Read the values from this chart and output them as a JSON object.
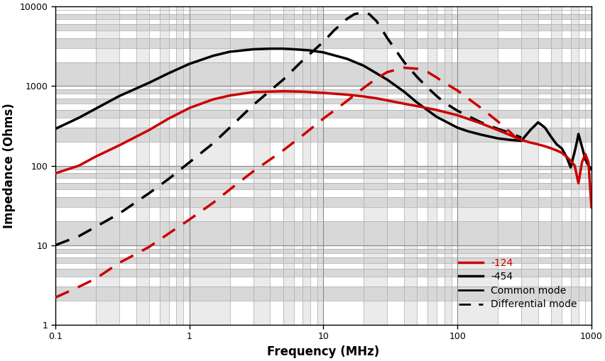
{
  "xlabel": "Frequency (MHz)",
  "ylabel": "Impedance (Ohms)",
  "xlim": [
    0.1,
    1000
  ],
  "ylim": [
    1,
    10000
  ],
  "legend": [
    {
      "label": "-124",
      "color": "#cc0000",
      "linestyle": "solid",
      "linewidth": 2.5
    },
    {
      "label": "-454",
      "color": "black",
      "linestyle": "solid",
      "linewidth": 2.5
    },
    {
      "label": "Common mode",
      "color": "black",
      "linestyle": "solid",
      "linewidth": 2.0
    },
    {
      "label": "Differential mode",
      "color": "black",
      "linestyle": "dashed",
      "linewidth": 2.0
    }
  ],
  "curves": {
    "red_common": {
      "color": "#cc0000",
      "linestyle": "solid",
      "linewidth": 2.5,
      "x": [
        0.1,
        0.15,
        0.2,
        0.3,
        0.5,
        0.7,
        1.0,
        1.5,
        2.0,
        3.0,
        5.0,
        7.0,
        10.0,
        15.0,
        20.0,
        25.0,
        30.0,
        40.0,
        50.0,
        70.0,
        100.0,
        150.0,
        200.0,
        250.0,
        300.0,
        350.0,
        400.0,
        450.0,
        500.0,
        550.0,
        600.0,
        650.0,
        700.0,
        750.0,
        800.0,
        850.0,
        900.0,
        950.0,
        1000.0
      ],
      "y": [
        80,
        100,
        130,
        180,
        280,
        390,
        530,
        680,
        760,
        840,
        860,
        850,
        820,
        780,
        740,
        700,
        660,
        600,
        560,
        500,
        430,
        340,
        280,
        240,
        210,
        195,
        185,
        175,
        165,
        155,
        145,
        130,
        115,
        100,
        60,
        110,
        140,
        110,
        30
      ]
    },
    "red_differential": {
      "color": "#cc0000",
      "linestyle": "dashed",
      "linewidth": 2.5,
      "x": [
        0.1,
        0.15,
        0.2,
        0.3,
        0.5,
        0.7,
        1.0,
        1.5,
        2.0,
        3.0,
        5.0,
        7.0,
        10.0,
        15.0,
        20.0,
        25.0,
        30.0,
        40.0,
        50.0,
        60.0,
        70.0,
        80.0,
        100.0,
        120.0,
        150.0,
        200.0,
        250.0,
        300.0
      ],
      "y": [
        2.2,
        3.0,
        3.8,
        6.0,
        9.5,
        14.0,
        21.0,
        34.0,
        50.0,
        85.0,
        155.0,
        240.0,
        390.0,
        650.0,
        950.0,
        1250.0,
        1500.0,
        1700.0,
        1650.0,
        1500.0,
        1280.0,
        1100.0,
        880.0,
        700.0,
        530.0,
        360.0,
        260.0,
        190.0
      ]
    },
    "black_common": {
      "color": "black",
      "linestyle": "solid",
      "linewidth": 2.5,
      "x": [
        0.1,
        0.15,
        0.2,
        0.3,
        0.5,
        0.7,
        1.0,
        1.5,
        2.0,
        3.0,
        4.0,
        5.0,
        6.0,
        7.0,
        8.0,
        10.0,
        15.0,
        20.0,
        30.0,
        40.0,
        50.0,
        70.0,
        100.0,
        120.0,
        150.0,
        200.0,
        250.0,
        300.0,
        350.0,
        400.0,
        450.0,
        500.0,
        550.0,
        600.0,
        650.0,
        700.0,
        720.0,
        750.0,
        780.0,
        800.0,
        830.0,
        860.0,
        900.0,
        950.0,
        1000.0
      ],
      "y": [
        290,
        400,
        520,
        750,
        1100,
        1450,
        1900,
        2400,
        2700,
        2900,
        2950,
        2950,
        2900,
        2850,
        2800,
        2650,
        2200,
        1800,
        1200,
        850,
        620,
        410,
        300,
        270,
        245,
        220,
        210,
        205,
        280,
        350,
        300,
        230,
        185,
        165,
        130,
        95,
        115,
        150,
        200,
        250,
        200,
        160,
        120,
        100,
        90
      ]
    },
    "black_differential": {
      "color": "black",
      "linestyle": "dashed",
      "linewidth": 2.5,
      "x": [
        0.1,
        0.15,
        0.2,
        0.3,
        0.5,
        0.7,
        1.0,
        1.5,
        2.0,
        3.0,
        5.0,
        7.0,
        10.0,
        12.0,
        15.0,
        17.0,
        20.0,
        22.0,
        25.0,
        30.0,
        40.0,
        50.0,
        60.0,
        70.0,
        80.0,
        100.0,
        120.0,
        150.0,
        200.0,
        250.0,
        300.0
      ],
      "y": [
        10,
        13,
        17,
        25,
        45,
        68,
        110,
        190,
        300,
        580,
        1200,
        2100,
        3600,
        5000,
        7000,
        8000,
        8500,
        8000,
        6500,
        4000,
        2000,
        1300,
        950,
        750,
        620,
        490,
        420,
        350,
        290,
        255,
        225
      ]
    }
  }
}
